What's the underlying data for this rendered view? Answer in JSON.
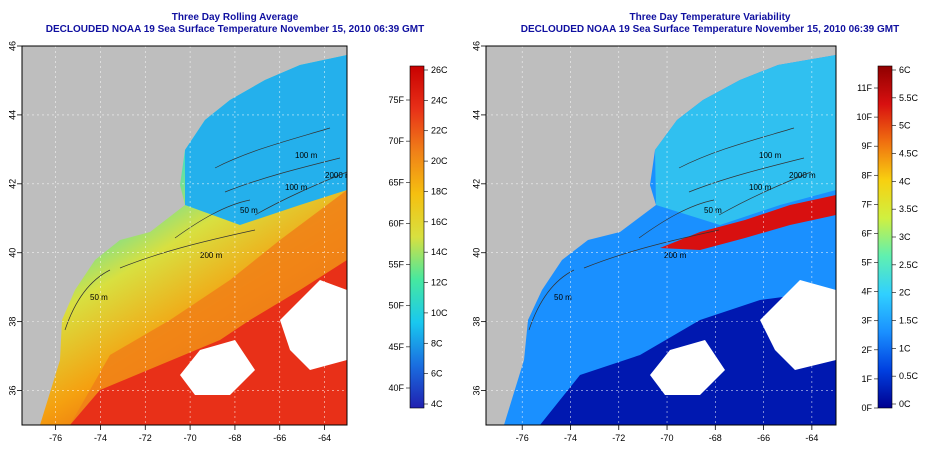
{
  "panels": [
    {
      "title": "Three Day Rolling Average",
      "subtitle": "DECLOUDED NOAA 19 Sea Surface Temperature November 15, 2010 06:39 GMT",
      "colorbar_f": [
        "75F",
        "70F",
        "65F",
        "60F",
        "55F",
        "50F",
        "45F",
        "40F"
      ],
      "colorbar_c": [
        "26C",
        "24C",
        "22C",
        "20C",
        "18C",
        "16C",
        "14C",
        "12C",
        "10C",
        "8C",
        "6C",
        "4C"
      ],
      "contours": [
        "100 m",
        "100 m",
        "50 m",
        "2000 m",
        "200 m",
        "50 m"
      ]
    },
    {
      "title": "Three Day Temperature Variability",
      "subtitle": "DECLOUDED NOAA 19 Sea Surface Temperature November 15, 2010 06:39 GMT",
      "colorbar_f": [
        "11F",
        "10F",
        "9F",
        "8F",
        "7F",
        "6F",
        "5F",
        "4F",
        "3F",
        "2F",
        "1F",
        "0F"
      ],
      "colorbar_c": [
        "6C",
        "5.5C",
        "5C",
        "4.5C",
        "4C",
        "3.5C",
        "3C",
        "2.5C",
        "2C",
        "1.5C",
        "1C",
        "0.5C",
        "0C"
      ],
      "contours": [
        "100 m",
        "100 m",
        "50 m",
        "2000 m",
        "200 m",
        "50 m"
      ]
    }
  ],
  "chart_data": [
    {
      "type": "heatmap",
      "title": "Three Day Rolling Average",
      "subtitle": "DECLOUDED NOAA 19 Sea Surface Temperature November 15, 2010 06:39 GMT",
      "x_ticks": [
        "-76",
        "-74",
        "-72",
        "-70",
        "-68",
        "-66",
        "-64"
      ],
      "y_ticks": [
        "36",
        "38",
        "40",
        "42",
        "44",
        "46"
      ],
      "xlim": [
        -77.5,
        -63
      ],
      "ylim": [
        35,
        46
      ],
      "colorbar_c": [
        4,
        26
      ],
      "colorbar_f": [
        40,
        75
      ],
      "colors": [
        "#2020b0",
        "#1a6ee0",
        "#19c8ef",
        "#46e8a0",
        "#d8e040",
        "#f5c010",
        "#f08018",
        "#e83018",
        "#c80000"
      ]
    },
    {
      "type": "heatmap",
      "title": "Three Day Temperature Variability",
      "subtitle": "DECLOUDED NOAA 19 Sea Surface Temperature November 15, 2010 06:39 GMT",
      "x_ticks": [
        "-76",
        "-74",
        "-72",
        "-70",
        "-68",
        "-66",
        "-64"
      ],
      "y_ticks": [
        "36",
        "38",
        "40",
        "42",
        "44",
        "46"
      ],
      "xlim": [
        -77.5,
        -63
      ],
      "ylim": [
        35,
        46
      ],
      "colorbar_c": [
        0,
        6
      ],
      "colorbar_f": [
        0,
        11
      ],
      "colors": [
        "#000090",
        "#0040e0",
        "#1a90ff",
        "#30d0ff",
        "#60f0b0",
        "#d0f040",
        "#f8d010",
        "#f07010",
        "#d81010",
        "#900000"
      ]
    }
  ]
}
